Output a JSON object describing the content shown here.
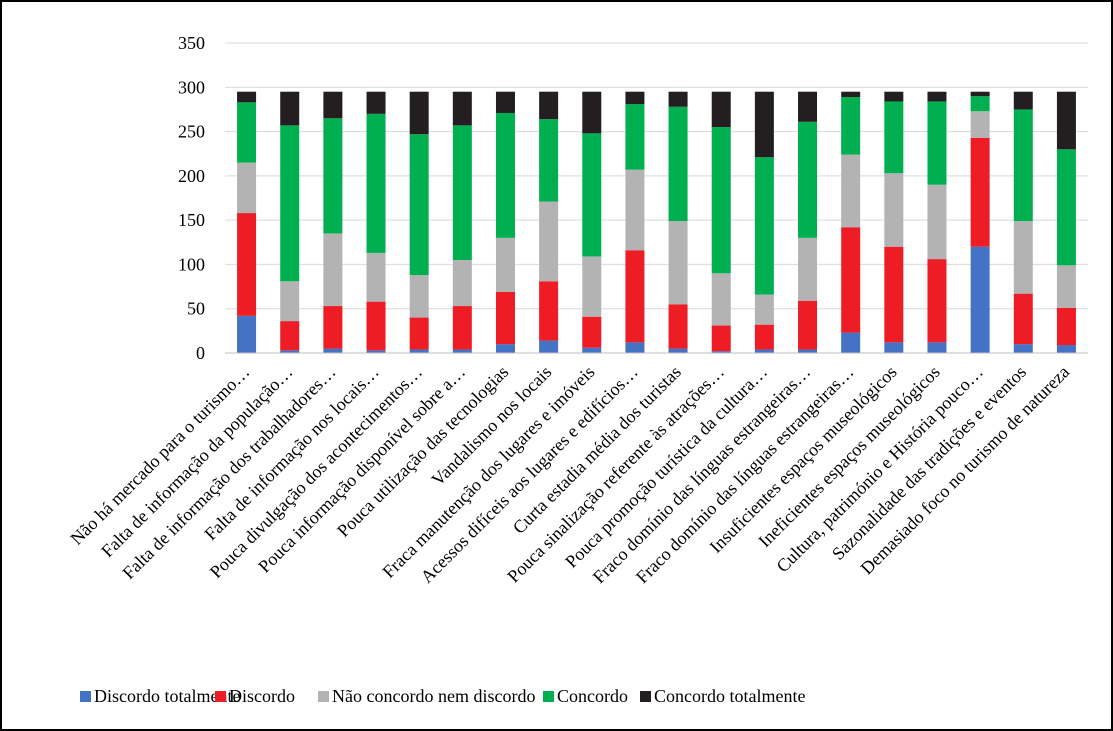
{
  "chart_data": {
    "type": "bar",
    "stacked": true,
    "categories": [
      "Não há mercado para o turismo…",
      "Falta de informação da população…",
      "Falta de informação dos trabalhadores…",
      "Falta de informação nos locais…",
      "Pouca divulgação dos acontecimentos…",
      "Pouca informação disponível sobre a…",
      "Pouca utilização das tecnologias",
      "Vandalismo nos locais",
      "Fraca manutenção dos lugares e imóveis",
      "Acessos difíceis aos lugares e edifícios…",
      "Curta estadia média dos turistas",
      "Pouca sinalização referente às atrações…",
      "Pouca promoção turística da cultura…",
      "Fraco domínio das línguas estrangeiras…",
      "Fraco domínio das línguas estrangeiras…",
      "Insuficientes espaços museológicos",
      "Ineficientes espaços museológicos",
      "Cultura, património e História pouco…",
      "Sazonalidade das tradições e eventos",
      "Demasiado foco no turismo de natureza"
    ],
    "series": [
      {
        "name": "Discordo totalmente",
        "color": "#4472c4",
        "values": [
          42,
          3,
          5,
          3,
          4,
          4,
          10,
          14,
          6,
          12,
          5,
          2,
          4,
          4,
          23,
          12,
          12,
          120,
          10,
          9
        ]
      },
      {
        "name": "Discordo",
        "color": "#ee1c25",
        "values": [
          116,
          33,
          48,
          55,
          36,
          49,
          59,
          67,
          35,
          104,
          50,
          29,
          28,
          55,
          119,
          108,
          94,
          123,
          57,
          42
        ]
      },
      {
        "name": "Não concordo nem discordo",
        "color": "#b3b3b3",
        "values": [
          57,
          45,
          82,
          55,
          48,
          52,
          61,
          90,
          68,
          91,
          94,
          59,
          34,
          71,
          82,
          83,
          84,
          30,
          82,
          48
        ]
      },
      {
        "name": "Concordo",
        "color": "#00b050",
        "values": [
          68,
          176,
          130,
          157,
          159,
          152,
          141,
          93,
          139,
          74,
          129,
          165,
          155,
          131,
          65,
          81,
          94,
          17,
          126,
          131
        ]
      },
      {
        "name": "Concordo totalmente",
        "color": "#231f20",
        "values": [
          12,
          38,
          30,
          25,
          48,
          38,
          24,
          31,
          47,
          14,
          17,
          40,
          74,
          34,
          6,
          11,
          11,
          5,
          20,
          65
        ]
      }
    ],
    "yticks": [
      0,
      50,
      100,
      150,
      200,
      250,
      300,
      350
    ],
    "ylim": [
      0,
      350
    ],
    "title": "",
    "xlabel": "",
    "ylabel": "",
    "grid": true,
    "legend": "bottom"
  }
}
